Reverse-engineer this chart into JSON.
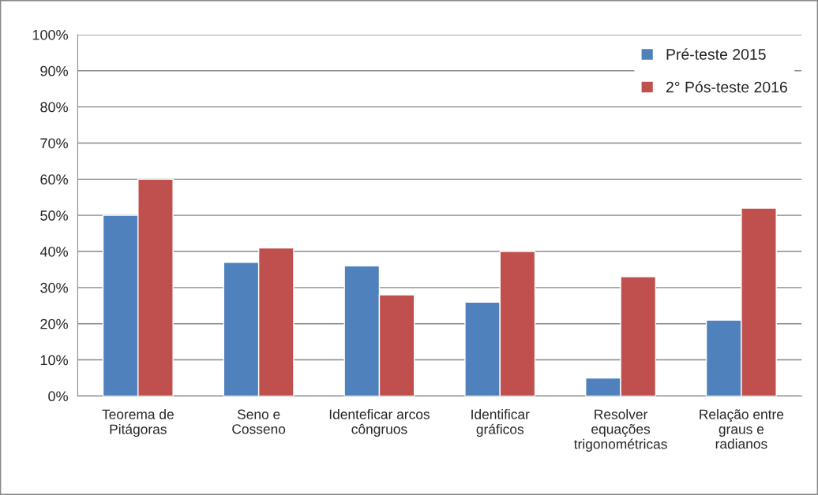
{
  "chart_data": {
    "type": "bar",
    "categories": [
      "Teorema de\nPitágoras",
      "Seno e\nCosseno",
      "Identeficar arcos\ncôngruos",
      "Identificar\ngráficos",
      "Resolver\nequações\ntrigonométricas",
      "Relação entre\ngraus e\nradianos"
    ],
    "series": [
      {
        "name": "Pré-teste 2015",
        "color": "#4f81bd",
        "values": [
          50,
          37,
          36,
          26,
          5,
          21
        ]
      },
      {
        "name": "2° Pós-teste 2016",
        "color": "#c0504d",
        "values": [
          60,
          41,
          28,
          40,
          33,
          52
        ]
      }
    ],
    "ylim": [
      0,
      100
    ],
    "yticks": [
      {
        "value": 0,
        "label": "0%"
      },
      {
        "value": 10,
        "label": "10%"
      },
      {
        "value": 20,
        "label": "20%"
      },
      {
        "value": 30,
        "label": "30%"
      },
      {
        "value": 40,
        "label": "40%"
      },
      {
        "value": 50,
        "label": "50%"
      },
      {
        "value": 60,
        "label": "60%"
      },
      {
        "value": 70,
        "label": "70%"
      },
      {
        "value": 80,
        "label": "80%"
      },
      {
        "value": 90,
        "label": "90%"
      },
      {
        "value": 100,
        "label": "100%"
      }
    ],
    "grid": "y",
    "legend": "top right"
  }
}
